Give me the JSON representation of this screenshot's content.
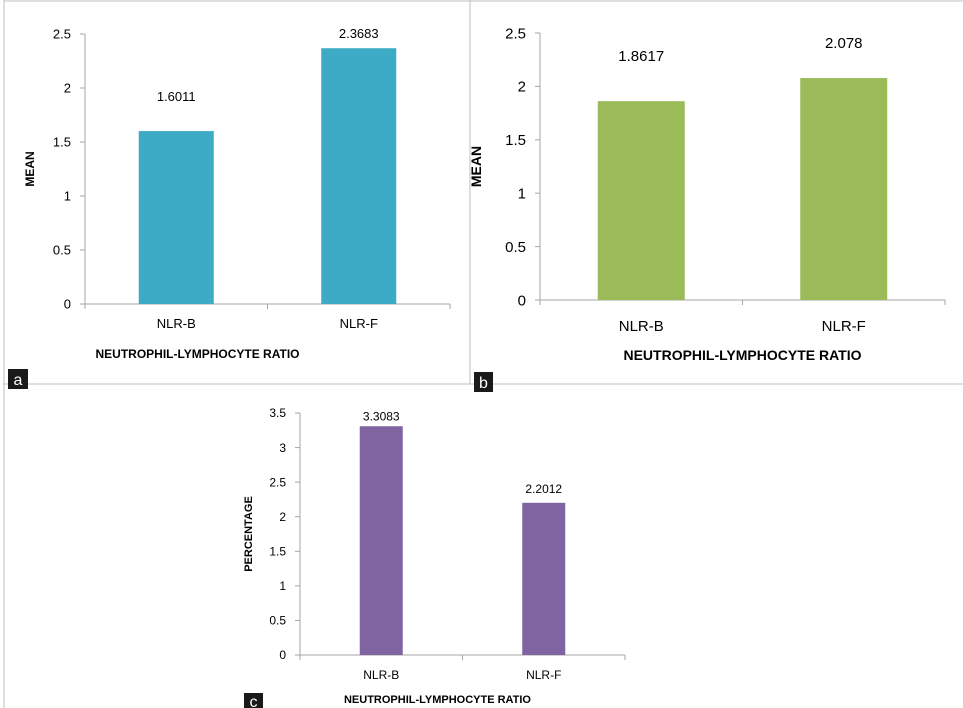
{
  "chart_data": [
    {
      "panel_label": "a",
      "type": "bar",
      "categories": [
        "NLR-B",
        "NLR-F"
      ],
      "values": [
        1.6011,
        2.3683
      ],
      "data_labels": [
        "1.6011",
        "2.3683"
      ],
      "xlabel": "NEUTROPHIL-LYMPHOCYTE RATIO",
      "ylabel": "MEAN",
      "ylim": [
        0,
        2.5
      ],
      "yticks": [
        "0",
        "0.5",
        "1",
        "1.5",
        "2",
        "2.5"
      ],
      "colors": [
        "#3daac6"
      ],
      "grid": false
    },
    {
      "panel_label": "b",
      "type": "bar",
      "categories": [
        "NLR-B",
        "NLR-F"
      ],
      "values": [
        1.8617,
        2.078
      ],
      "data_labels": [
        "1.8617",
        "2.078"
      ],
      "xlabel": "NEUTROPHIL-LYMPHOCYTE RATIO",
      "ylabel": "MEAN",
      "ylim": [
        0,
        2.5
      ],
      "yticks": [
        "0",
        "0.5",
        "1",
        "1.5",
        "2",
        "2.5"
      ],
      "colors": [
        "#9bbb59"
      ],
      "grid": false
    },
    {
      "panel_label": "c",
      "type": "bar",
      "categories": [
        "NLR-B",
        "NLR-F"
      ],
      "values": [
        3.3083,
        2.2012
      ],
      "data_labels": [
        "3.3083",
        "2.2012"
      ],
      "xlabel": "NEUTROPHIL-LYMPHOCYTE RATIO",
      "ylabel": "PERCENTAGE",
      "ylim": [
        0,
        3.5
      ],
      "yticks": [
        "0",
        "0.5",
        "1",
        "1.5",
        "2",
        "2.5",
        "3",
        "3.5"
      ],
      "colors": [
        "#8064a2"
      ],
      "grid": false
    }
  ]
}
